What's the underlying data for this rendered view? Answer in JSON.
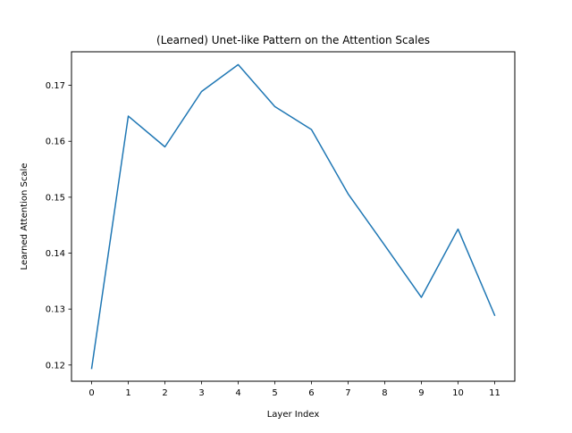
{
  "chart_data": {
    "type": "line",
    "title": "(Learned) Unet-like Pattern on the Attention Scales",
    "xlabel": "Layer Index",
    "ylabel": "Learned Attention Scale",
    "x": [
      0,
      1,
      2,
      3,
      4,
      5,
      6,
      7,
      8,
      9,
      10,
      11
    ],
    "series": [
      {
        "values": [
          0.1194,
          0.1645,
          0.159,
          0.1689,
          0.1737,
          0.1662,
          0.1621,
          0.1506,
          0.1414,
          0.1321,
          0.1443,
          0.1289
        ],
        "color": "#1f77b4"
      }
    ],
    "xlim": [
      -0.55,
      11.55
    ],
    "ylim": [
      0.1171,
      0.176
    ],
    "xticks": [
      "0",
      "1",
      "2",
      "3",
      "4",
      "5",
      "6",
      "7",
      "8",
      "9",
      "10",
      "11"
    ],
    "yticks": [
      "0.12",
      "0.13",
      "0.14",
      "0.15",
      "0.16",
      "0.17"
    ],
    "grid": false,
    "legend": "none"
  }
}
